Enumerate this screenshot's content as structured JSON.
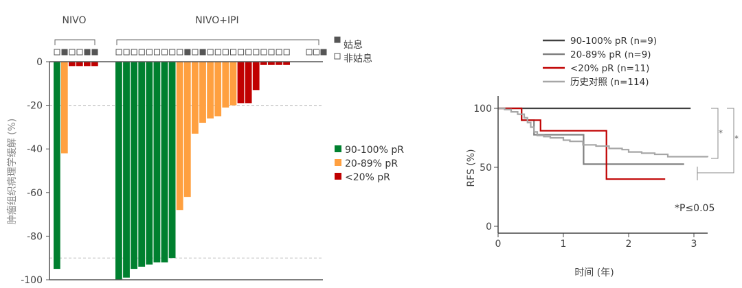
{
  "chart_data": [
    {
      "type": "bar",
      "ylabel": "肿瘤组织病理学缓解 (%)",
      "ylim": [
        -100,
        0
      ],
      "yticks": [
        0,
        -20,
        -40,
        -60,
        -80,
        -100
      ],
      "reference_lines": [
        -20,
        -90
      ],
      "groups": [
        {
          "label": "NIVO",
          "palliative": [
            false,
            true,
            false,
            false,
            true,
            true
          ],
          "values": [
            -95,
            -42,
            -2,
            -2,
            -2,
            -2
          ],
          "categories": [
            "90-100% pR",
            "20-89% pR",
            "<20% pR",
            "<20% pR",
            "<20% pR",
            "<20% pR"
          ]
        },
        {
          "label": "NIVO+IPI",
          "palliative": [
            false,
            false,
            false,
            false,
            false,
            false,
            false,
            false,
            false,
            true,
            false,
            true,
            false,
            false,
            false,
            false,
            false,
            false,
            false,
            false,
            false,
            false,
            false,
            false,
            false,
            true
          ],
          "values": [
            -100,
            -99,
            -95,
            -94,
            -93,
            -92,
            -92,
            -90,
            -68,
            -62,
            -33,
            -28,
            -26,
            -25,
            -21,
            -20,
            -19,
            -19,
            -13,
            -1.5,
            -1.5,
            -1.5,
            -1.5,
            null,
            null,
            null
          ],
          "categories": [
            "90-100% pR",
            "90-100% pR",
            "90-100% pR",
            "90-100% pR",
            "90-100% pR",
            "90-100% pR",
            "90-100% pR",
            "90-100% pR",
            "20-89% pR",
            "20-89% pR",
            "20-89% pR",
            "20-89% pR",
            "20-89% pR",
            "20-89% pR",
            "20-89% pR",
            "20-89% pR",
            "<20% pR",
            "<20% pR",
            "<20% pR",
            "<20% pR",
            "<20% pR",
            "<20% pR",
            "<20% pR",
            null,
            null,
            null
          ]
        }
      ],
      "marker_legend": [
        {
          "label": "姑息",
          "filled": true
        },
        {
          "label": "非姑息",
          "filled": false
        }
      ],
      "legend": [
        {
          "label": "90-100% pR",
          "color": "#00802f"
        },
        {
          "label": "20-89% pR",
          "color": "#ffa040"
        },
        {
          "label": "<20% pR",
          "color": "#c00000"
        }
      ],
      "legend_position": "right"
    },
    {
      "type": "line",
      "xlabel": "时间 (年)",
      "ylabel": "RFS (%)",
      "xlim": [
        0,
        3.3
      ],
      "ylim": [
        0,
        100
      ],
      "xticks": [
        0,
        1,
        2,
        3
      ],
      "yticks": [
        0,
        50,
        100
      ],
      "legend_position": "top",
      "series": [
        {
          "name": "90-100% pR (n=9)",
          "color": "#404040",
          "step": true,
          "points": [
            [
              0,
              100
            ],
            [
              2.95,
              100
            ]
          ]
        },
        {
          "name": "20-89% pR (n=9)",
          "color": "#808080",
          "step": true,
          "points": [
            [
              0,
              100
            ],
            [
              0.36,
              90
            ],
            [
              0.55,
              77.6
            ],
            [
              1.31,
              52.7
            ],
            [
              2.85,
              52.7
            ]
          ]
        },
        {
          "name": "<20% pR (n=11)",
          "color": "#c00000",
          "step": true,
          "points": [
            [
              0,
              100
            ],
            [
              0.36,
              90
            ],
            [
              0.65,
              81
            ],
            [
              1.66,
              40
            ],
            [
              2.56,
              40
            ]
          ]
        },
        {
          "name": "历史对照 (n=114)",
          "color": "#a6a6a6",
          "step": true,
          "points": [
            [
              0,
              100
            ],
            [
              0.1,
              99
            ],
            [
              0.2,
              97
            ],
            [
              0.3,
              95
            ],
            [
              0.4,
              92
            ],
            [
              0.45,
              88
            ],
            [
              0.5,
              84
            ],
            [
              0.55,
              80
            ],
            [
              0.6,
              77
            ],
            [
              0.7,
              76
            ],
            [
              0.8,
              75
            ],
            [
              1.0,
              73
            ],
            [
              1.1,
              72
            ],
            [
              1.3,
              69
            ],
            [
              1.5,
              68
            ],
            [
              1.7,
              66
            ],
            [
              1.9,
              65
            ],
            [
              2.0,
              63
            ],
            [
              2.2,
              62
            ],
            [
              2.4,
              61
            ],
            [
              2.6,
              59
            ],
            [
              3.0,
              59
            ],
            [
              3.21,
              58.6
            ]
          ]
        }
      ],
      "annotations": {
        "bracket1": "*",
        "bracket2": "*",
        "pvalue": "*P≤0.05"
      }
    }
  ]
}
